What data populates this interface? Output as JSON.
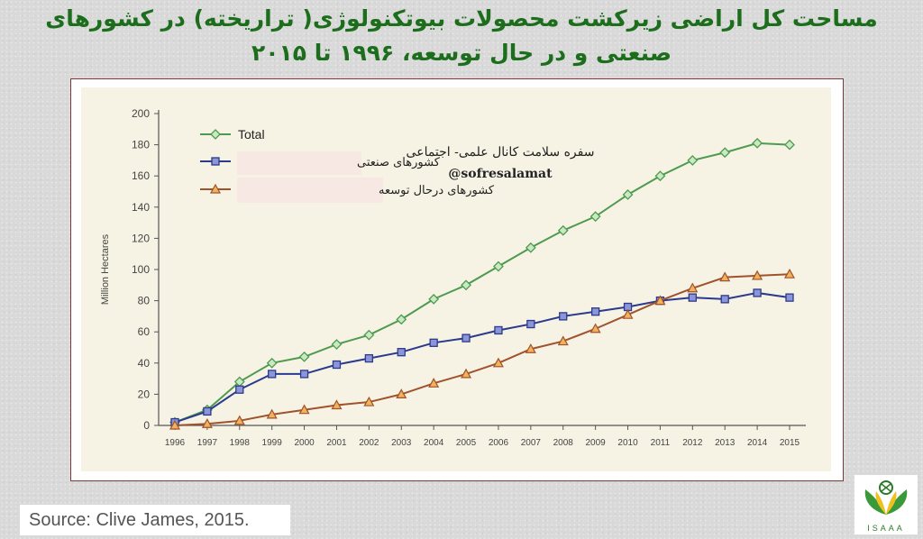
{
  "title": "مساحت کل اراضی زیرکشت محصولات بیوتکنولوژی( تراریخته) در کشورهای صنعتی و در حال توسعه، ۱۹۹۶ تا ۲۰۱۵",
  "watermark": {
    "line1": "سفره سلامت کانال علمی- اجتماعی",
    "line2": "@sofresalamat"
  },
  "source": "Source: Clive James, 2015.",
  "logo_text": "ISAAA",
  "colors": {
    "total": "#4e9a4e",
    "industrial": "#2b3a8c",
    "developing": "#a0522d",
    "total_marker": "#c9e8c4",
    "developing_marker": "#f0b25a"
  },
  "chart_data": {
    "type": "line",
    "title": "",
    "xlabel": "",
    "ylabel": "Million Hectares",
    "x": [
      "1996",
      "1997",
      "1998",
      "1999",
      "2000",
      "2001",
      "2002",
      "2003",
      "2004",
      "2005",
      "2006",
      "2007",
      "2008",
      "2009",
      "2010",
      "2011",
      "2012",
      "2013",
      "2014",
      "2015"
    ],
    "ylim": [
      0,
      200
    ],
    "yticks": [
      0,
      20,
      40,
      60,
      80,
      100,
      120,
      140,
      160,
      180,
      200
    ],
    "grid": false,
    "legend_position": "top-left",
    "series": [
      {
        "name": "Total",
        "key": "total",
        "marker": "diamond",
        "values": [
          2,
          10,
          28,
          40,
          44,
          52,
          58,
          68,
          81,
          90,
          102,
          114,
          125,
          134,
          148,
          160,
          170,
          175,
          181,
          180
        ]
      },
      {
        "name": "کشورهای صنعتی",
        "key": "industrial",
        "marker": "square",
        "values": [
          2,
          9,
          23,
          33,
          33,
          39,
          43,
          47,
          53,
          56,
          61,
          65,
          70,
          73,
          76,
          80,
          82,
          81,
          85,
          82
        ]
      },
      {
        "name": "کشورهای درحال توسعه",
        "key": "developing",
        "marker": "triangle",
        "values": [
          0,
          1,
          3,
          7,
          10,
          13,
          15,
          20,
          27,
          33,
          40,
          49,
          54,
          62,
          71,
          80,
          88,
          95,
          96,
          97
        ]
      }
    ]
  }
}
